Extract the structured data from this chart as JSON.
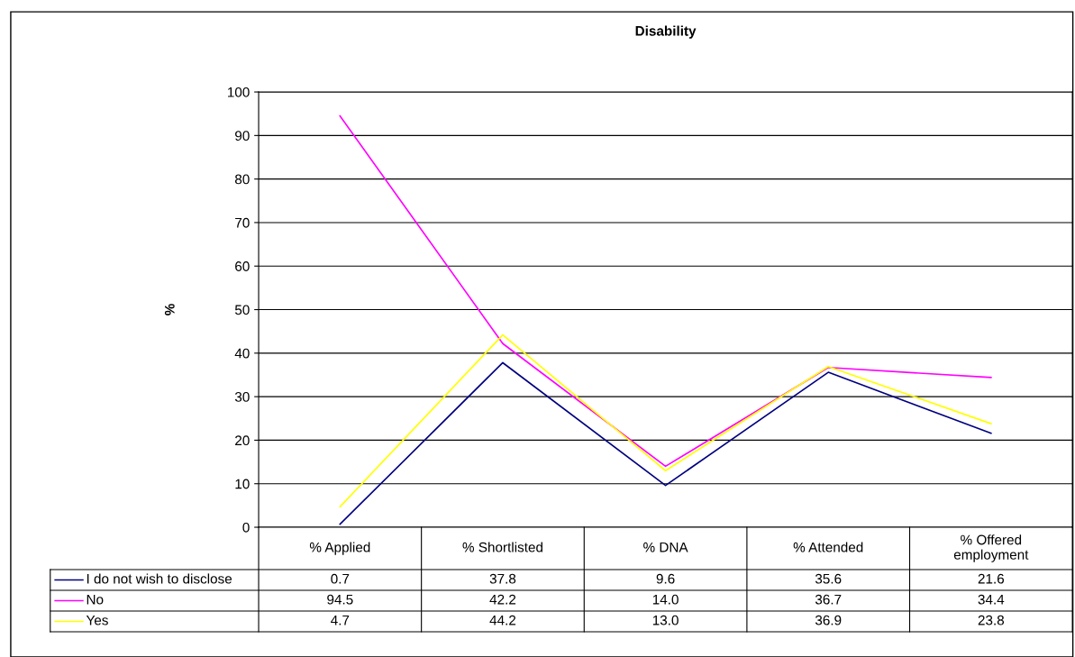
{
  "chart_data": {
    "type": "line",
    "title": "Disability",
    "ylabel": "%",
    "categories": [
      "% Applied",
      "% Shortlisted",
      "% DNA",
      "% Attended",
      "% Offered employment"
    ],
    "series": [
      {
        "name": "I do not wish to disclose",
        "color": "#000080",
        "values": [
          0.7,
          37.8,
          9.6,
          35.6,
          21.6
        ],
        "value_labels": [
          "0.7",
          "37.8",
          "9.6",
          "35.6",
          "21.6"
        ]
      },
      {
        "name": "No",
        "color": "#ff00ff",
        "values": [
          94.5,
          42.2,
          14.0,
          36.7,
          34.4
        ],
        "value_labels": [
          "94.5",
          "42.2",
          "14.0",
          "36.7",
          "34.4"
        ]
      },
      {
        "name": "Yes",
        "color": "#ffff00",
        "values": [
          4.7,
          44.2,
          13.0,
          36.9,
          23.8
        ],
        "value_labels": [
          "4.7",
          "44.2",
          "13.0",
          "36.9",
          "23.8"
        ]
      }
    ],
    "ylim": [
      0,
      100
    ],
    "yticks": [
      0,
      10,
      20,
      30,
      40,
      50,
      60,
      70,
      80,
      90,
      100
    ],
    "grid": "y",
    "legend": "bottom",
    "marker": "none",
    "line_style": "solid"
  }
}
